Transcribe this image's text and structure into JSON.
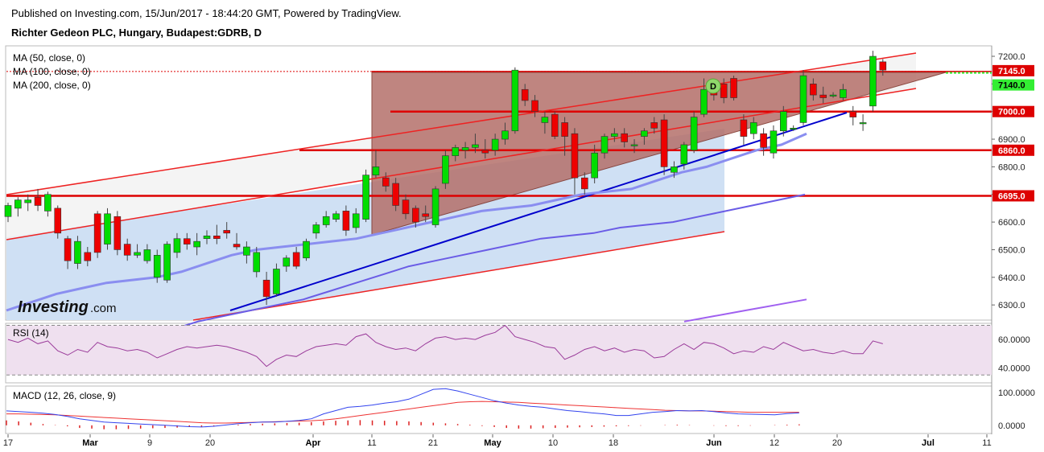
{
  "header": {
    "published": "Published on Investing.com, 15/Jun/2017 - 18:44:20 GMT, Powered by TradingView.",
    "instrument": "Richter Gedeon PLC, Hungary, Budapest:GDRB, D"
  },
  "brand": {
    "name": "Investing",
    "suffix": ".com"
  },
  "overlays": {
    "ma50": "MA (50, close, 0)",
    "ma100": "MA (100, close, 0)",
    "ma200": "MA (200, close, 0)",
    "rsi": "RSI (14)",
    "macd": "MACD (12, 26, close, 9)",
    "pattern_marker": "D"
  },
  "colors": {
    "up": "#00dd00",
    "down": "#ee0000",
    "ma50": "#8a8ef0",
    "ma100": "#6a5ce6",
    "ma200": "#a060f0",
    "trend": "#0000cc",
    "level": "#dd0000",
    "rsi": "#9a3a9a",
    "macd": "#3344ee",
    "signal": "#ee3333"
  },
  "chart_data": [
    {
      "type": "candlestick",
      "title": "Richter Gedeon PLC, Hungary, Budapest:GDRB, D",
      "y_ticks": [
        6300,
        6400,
        6500,
        6600,
        6700,
        6800,
        6900,
        7000,
        7100,
        7200
      ],
      "y_range": [
        6220,
        7240
      ],
      "x_ticks": [
        "17",
        "Mar",
        "9",
        "20",
        "Apr",
        "11",
        "21",
        "May",
        "10",
        "18",
        "Jun",
        "12",
        "20",
        "Jul",
        "11"
      ],
      "price_tags": [
        {
          "label": "7145.0",
          "kind": "last"
        },
        {
          "label": "7140.0",
          "kind": "level"
        },
        {
          "label": "7000.0",
          "kind": "level"
        },
        {
          "label": "6860.0",
          "kind": "level"
        },
        {
          "label": "6695.0",
          "kind": "level"
        }
      ],
      "horizontal_levels": [
        7145,
        7000,
        6860,
        6695
      ],
      "series": [
        {
          "name": "ohlc",
          "candles": [
            [
              6620,
              6660,
              6600,
              6670
            ],
            [
              6650,
              6680,
              6620,
              6690
            ],
            [
              6670,
              6680,
              6640,
              6700
            ],
            [
              6690,
              6660,
              6640,
              6720
            ],
            [
              6640,
              6700,
              6620,
              6710
            ],
            [
              6650,
              6560,
              6540,
              6660
            ],
            [
              6540,
              6460,
              6430,
              6550
            ],
            [
              6450,
              6530,
              6430,
              6550
            ],
            [
              6490,
              6460,
              6440,
              6510
            ],
            [
              6630,
              6490,
              6470,
              6640
            ],
            [
              6520,
              6630,
              6500,
              6650
            ],
            [
              6620,
              6500,
              6480,
              6640
            ],
            [
              6520,
              6480,
              6460,
              6540
            ],
            [
              6480,
              6490,
              6470,
              6520
            ],
            [
              6460,
              6500,
              6450,
              6520
            ],
            [
              6400,
              6480,
              6380,
              6500
            ],
            [
              6390,
              6520,
              6380,
              6530
            ],
            [
              6490,
              6540,
              6470,
              6560
            ],
            [
              6540,
              6520,
              6500,
              6560
            ],
            [
              6510,
              6530,
              6480,
              6560
            ],
            [
              6540,
              6550,
              6520,
              6570
            ],
            [
              6550,
              6540,
              6520,
              6590
            ],
            [
              6570,
              6560,
              6540,
              6600
            ],
            [
              6520,
              6510,
              6500,
              6560
            ],
            [
              6480,
              6510,
              6450,
              6530
            ],
            [
              6420,
              6490,
              6400,
              6510
            ],
            [
              6390,
              6330,
              6300,
              6420
            ],
            [
              6340,
              6430,
              6330,
              6450
            ],
            [
              6440,
              6470,
              6420,
              6480
            ],
            [
              6490,
              6440,
              6430,
              6510
            ],
            [
              6470,
              6530,
              6460,
              6540
            ],
            [
              6560,
              6590,
              6540,
              6600
            ],
            [
              6590,
              6620,
              6580,
              6640
            ],
            [
              6610,
              6630,
              6600,
              6640
            ],
            [
              6640,
              6570,
              6550,
              6660
            ],
            [
              6580,
              6630,
              6560,
              6650
            ],
            [
              6610,
              6770,
              6600,
              6790
            ],
            [
              6770,
              6800,
              6760,
              6860
            ],
            [
              6760,
              6730,
              6710,
              6780
            ],
            [
              6740,
              6660,
              6640,
              6760
            ],
            [
              6680,
              6630,
              6610,
              6700
            ],
            [
              6650,
              6600,
              6580,
              6660
            ],
            [
              6630,
              6620,
              6600,
              6660
            ],
            [
              6590,
              6720,
              6580,
              6730
            ],
            [
              6740,
              6840,
              6720,
              6860
            ],
            [
              6840,
              6870,
              6820,
              6880
            ],
            [
              6860,
              6870,
              6830,
              6890
            ],
            [
              6870,
              6880,
              6850,
              6920
            ],
            [
              6860,
              6850,
              6830,
              6900
            ],
            [
              6860,
              6900,
              6840,
              6920
            ],
            [
              6900,
              6930,
              6880,
              6960
            ],
            [
              6930,
              7150,
              6920,
              7160
            ],
            [
              7080,
              7040,
              7020,
              7100
            ],
            [
              7040,
              7000,
              6980,
              7060
            ],
            [
              6960,
              6980,
              6920,
              7000
            ],
            [
              6990,
              6910,
              6900,
              7000
            ],
            [
              6960,
              6910,
              6840,
              6980
            ],
            [
              6920,
              6760,
              6700,
              6940
            ],
            [
              6760,
              6720,
              6700,
              6780
            ],
            [
              6760,
              6850,
              6740,
              6880
            ],
            [
              6850,
              6910,
              6830,
              6920
            ],
            [
              6910,
              6920,
              6890,
              6940
            ],
            [
              6920,
              6890,
              6870,
              6940
            ],
            [
              6880,
              6880,
              6850,
              6900
            ],
            [
              6910,
              6930,
              6880,
              6940
            ],
            [
              6960,
              6940,
              6920,
              6980
            ],
            [
              6970,
              6800,
              6770,
              6990
            ],
            [
              6780,
              6800,
              6760,
              6820
            ],
            [
              6810,
              6880,
              6790,
              6890
            ],
            [
              6860,
              6980,
              6850,
              7000
            ],
            [
              6990,
              7080,
              6980,
              7120
            ],
            [
              7080,
              7060,
              7040,
              7100
            ],
            [
              7100,
              7050,
              7030,
              7120
            ],
            [
              7120,
              7050,
              7040,
              7130
            ],
            [
              6970,
              6910,
              6880,
              6990
            ],
            [
              6920,
              6960,
              6900,
              6980
            ],
            [
              6920,
              6870,
              6840,
              6940
            ],
            [
              6850,
              6930,
              6830,
              6950
            ],
            [
              6930,
              7000,
              6910,
              7020
            ],
            [
              6940,
              6940,
              6930,
              6950
            ],
            [
              6960,
              7130,
              6950,
              7150
            ],
            [
              7100,
              7060,
              7040,
              7120
            ],
            [
              7060,
              7050,
              7030,
              7090
            ],
            [
              7060,
              7060,
              7050,
              7070
            ],
            [
              7050,
              7080,
              7040,
              7100
            ],
            [
              7000,
              6980,
              6950,
              7020
            ],
            [
              6960,
              6960,
              6930,
              6990
            ],
            [
              7020,
              7200,
              7000,
              7220
            ],
            [
              7180,
              7150,
              7130,
              7190
            ]
          ]
        },
        {
          "name": "MA (50, close, 0)",
          "values": [
            6280,
            6310,
            6340,
            6360,
            6380,
            6390,
            6400,
            6420,
            6450,
            6480,
            6500,
            6510,
            6520,
            6530,
            6540,
            6560,
            6580,
            6600,
            6620,
            6640,
            6650,
            6660,
            6680,
            6700,
            6710,
            6720,
            6750,
            6780,
            6800,
            6830,
            6860,
            6880,
            6920
          ]
        },
        {
          "name": "MA (100, close, 0)",
          "values": [
            6200,
            6210,
            6240,
            6260,
            6280,
            6300,
            6320,
            6350,
            6380,
            6410,
            6440,
            6460,
            6480,
            6500,
            6520,
            6540,
            6550,
            6560,
            6580,
            6590,
            6600,
            6620,
            6640,
            6660,
            6680,
            6700
          ]
        },
        {
          "name": "MA (200, close, 0)",
          "values": [
            6240,
            6260,
            6280,
            6300,
            6320
          ]
        }
      ]
    },
    {
      "type": "line",
      "title": "RSI (14)",
      "y_ticks": [
        40,
        60
      ],
      "y_tick_labels": [
        "40.0000",
        "60.0000"
      ],
      "y_range": [
        30,
        72
      ],
      "series": [
        {
          "name": "RSI (14)",
          "values": [
            60,
            58,
            61,
            57,
            59,
            52,
            49,
            53,
            51,
            58,
            55,
            54,
            52,
            53,
            51,
            47,
            50,
            53,
            55,
            54,
            55,
            56,
            55,
            53,
            51,
            48,
            41,
            46,
            49,
            48,
            52,
            55,
            56,
            57,
            56,
            62,
            64,
            58,
            55,
            53,
            54,
            52,
            57,
            61,
            62,
            60,
            61,
            60,
            63,
            65,
            70,
            62,
            60,
            58,
            55,
            54,
            46,
            49,
            53,
            55,
            52,
            54,
            51,
            53,
            52,
            47,
            48,
            53,
            57,
            53,
            58,
            57,
            54,
            50,
            52,
            51,
            55,
            53,
            58,
            55,
            52,
            53,
            51,
            50,
            52,
            50,
            50,
            59,
            57
          ]
        }
      ]
    },
    {
      "type": "line",
      "title": "MACD (12, 26, close, 9)",
      "y_ticks": [
        0,
        100
      ],
      "y_tick_labels": [
        "0.0000",
        "100.0000"
      ],
      "y_range": [
        -25,
        120
      ],
      "series": [
        {
          "name": "MACD",
          "values": [
            44,
            42,
            40,
            37,
            33,
            27,
            20,
            15,
            10,
            8,
            6,
            4,
            2,
            0,
            -2,
            -4,
            -5,
            -3,
            1,
            5,
            8,
            10,
            10,
            12,
            15,
            20,
            35,
            45,
            55,
            58,
            62,
            68,
            72,
            80,
            95,
            110,
            112,
            105,
            95,
            85,
            75,
            68,
            62,
            58,
            55,
            50,
            45,
            42,
            38,
            35,
            30,
            30,
            35,
            40,
            42,
            45,
            44,
            45,
            42,
            38,
            35,
            34,
            33,
            32,
            36,
            38
          ]
        },
        {
          "name": "Signal",
          "values": [
            35,
            35,
            34,
            33,
            32,
            30,
            28,
            26,
            24,
            22,
            20,
            18,
            16,
            14,
            12,
            10,
            8,
            7,
            7,
            8,
            9,
            10,
            11,
            12,
            13,
            14,
            16,
            20,
            25,
            30,
            35,
            40,
            45,
            50,
            55,
            60,
            65,
            70,
            72,
            73,
            72,
            71,
            70,
            68,
            66,
            64,
            62,
            60,
            58,
            56,
            54,
            52,
            50,
            48,
            46,
            45,
            44,
            44,
            43,
            42,
            41,
            40,
            40,
            40,
            40,
            40
          ]
        },
        {
          "name": "Histogram",
          "values": [
            15,
            12,
            8,
            4,
            1,
            -3,
            -8,
            -10,
            -12,
            -12,
            -11,
            -10,
            -9,
            -8,
            -7,
            -5,
            -4,
            -2,
            0,
            2,
            4,
            5,
            6,
            7,
            8,
            10,
            12,
            14,
            15,
            16,
            15,
            14,
            13,
            12,
            10,
            8,
            6,
            4,
            2,
            -2,
            -5,
            -8,
            -10,
            -10,
            -9,
            -8,
            -7,
            -6,
            -5,
            -4,
            -3,
            -2,
            -1,
            0,
            1,
            2,
            1,
            0,
            -1,
            -2,
            -2,
            -1,
            0,
            1,
            2,
            3
          ]
        }
      ]
    }
  ]
}
